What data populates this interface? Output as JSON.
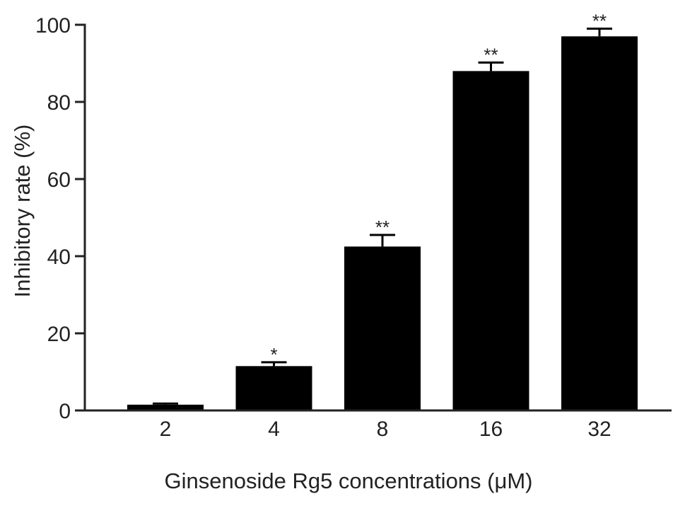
{
  "chart_data": {
    "type": "bar",
    "categories": [
      "2",
      "4",
      "8",
      "16",
      "32"
    ],
    "values": [
      1.5,
      11.5,
      42.5,
      88,
      97
    ],
    "errors": [
      0.3,
      1.0,
      3.0,
      2.2,
      2.0
    ],
    "significance": [
      "",
      "*",
      "**",
      "**",
      "**"
    ],
    "title": "",
    "xlabel": "Ginsenoside Rg5 concentrations (μM)",
    "ylabel": "Inhibitory rate (%)",
    "ylim": [
      0,
      100
    ],
    "yticks": [
      0,
      20,
      40,
      60,
      80,
      100
    ],
    "grid": false,
    "bar_color": "#000000",
    "axis_color": "#222222"
  }
}
